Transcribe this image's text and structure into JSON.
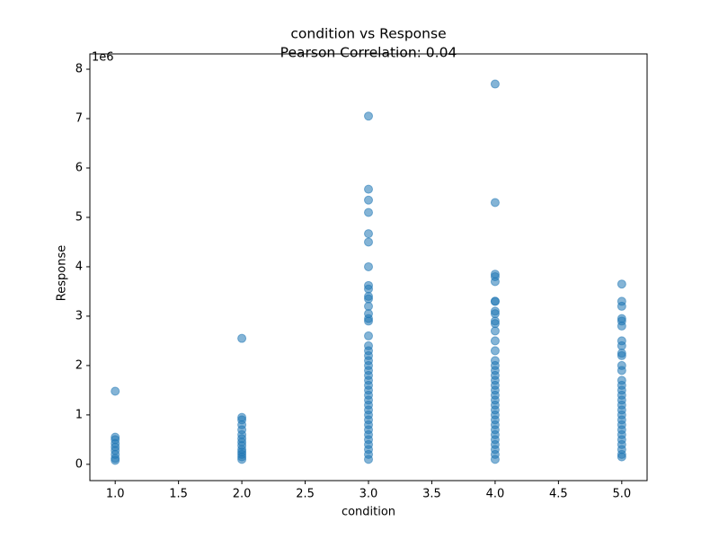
{
  "chart_data": {
    "type": "scatter",
    "title": "condition vs Response",
    "subtitle": "Pearson Correlation: 0.04",
    "x_label": "condition",
    "y_label": "Response",
    "y_offset_label": "1e6",
    "color": "#1f77b4",
    "alpha": 0.55,
    "xlim": [
      0.8,
      5.2
    ],
    "ylim": [
      -0.33,
      8.31
    ],
    "xticks": [
      {
        "value": 1,
        "label": "1.0"
      },
      {
        "value": 1.5,
        "label": "1.5"
      },
      {
        "value": 2,
        "label": "2.0"
      },
      {
        "value": 2.5,
        "label": "2.5"
      },
      {
        "value": 3,
        "label": "3.0"
      },
      {
        "value": 3.5,
        "label": "3.5"
      },
      {
        "value": 4,
        "label": "4.0"
      },
      {
        "value": 4.5,
        "label": "4.5"
      },
      {
        "value": 5,
        "label": "5.0"
      }
    ],
    "yticks": [
      0,
      1,
      2,
      3,
      4,
      5,
      6,
      7,
      8
    ],
    "x": [
      1,
      1,
      1,
      1,
      1,
      1,
      1,
      1,
      1,
      2,
      2,
      2,
      2,
      2,
      2,
      2,
      2,
      2,
      2,
      2,
      2,
      2,
      2,
      3,
      3,
      3,
      3,
      3,
      3,
      3,
      3,
      3,
      3,
      3,
      3,
      3,
      3,
      3,
      3,
      3,
      3,
      3,
      3,
      3,
      3,
      3,
      3,
      3,
      3,
      3,
      3,
      3,
      3,
      3,
      3,
      3,
      3,
      3,
      3,
      3,
      3,
      3,
      3,
      4,
      4,
      4,
      4,
      4,
      4,
      4,
      4,
      4,
      4,
      4,
      4,
      4,
      4,
      4,
      4,
      4,
      4,
      4,
      4,
      4,
      4,
      4,
      4,
      4,
      4,
      4,
      4,
      4,
      4,
      4,
      4,
      4,
      4,
      4,
      5,
      5,
      5,
      5,
      5,
      5,
      5,
      5,
      5,
      5,
      5,
      5,
      5,
      5,
      5,
      5,
      5,
      5,
      5,
      5,
      5,
      5,
      5,
      5,
      5,
      5,
      5,
      5,
      5
    ],
    "values": [
      1.48,
      0.55,
      0.5,
      0.42,
      0.35,
      0.28,
      0.2,
      0.12,
      0.08,
      2.55,
      0.95,
      0.9,
      0.8,
      0.7,
      0.6,
      0.52,
      0.45,
      0.38,
      0.3,
      0.25,
      0.2,
      0.15,
      0.1,
      7.05,
      5.57,
      5.35,
      5.1,
      4.67,
      4.5,
      4.0,
      3.62,
      3.55,
      3.4,
      3.35,
      3.2,
      3.05,
      2.95,
      2.9,
      2.6,
      2.4,
      2.3,
      2.2,
      2.1,
      2.0,
      1.9,
      1.8,
      1.7,
      1.6,
      1.5,
      1.4,
      1.3,
      1.2,
      1.1,
      1.0,
      0.9,
      0.8,
      0.7,
      0.6,
      0.5,
      0.4,
      0.3,
      0.2,
      0.1,
      7.7,
      5.3,
      3.85,
      3.8,
      3.7,
      3.3,
      3.3,
      3.1,
      3.05,
      2.9,
      2.85,
      2.7,
      2.5,
      2.3,
      2.1,
      2.0,
      1.9,
      1.8,
      1.7,
      1.6,
      1.5,
      1.4,
      1.3,
      1.2,
      1.1,
      1.0,
      0.9,
      0.8,
      0.7,
      0.6,
      0.5,
      0.4,
      0.3,
      0.2,
      0.1,
      3.65,
      3.3,
      3.2,
      2.95,
      2.9,
      2.8,
      2.5,
      2.4,
      2.25,
      2.2,
      2.0,
      1.9,
      1.7,
      1.6,
      1.5,
      1.4,
      1.3,
      1.2,
      1.1,
      1.0,
      0.9,
      0.8,
      0.7,
      0.6,
      0.5,
      0.4,
      0.3,
      0.2,
      0.15
    ]
  }
}
